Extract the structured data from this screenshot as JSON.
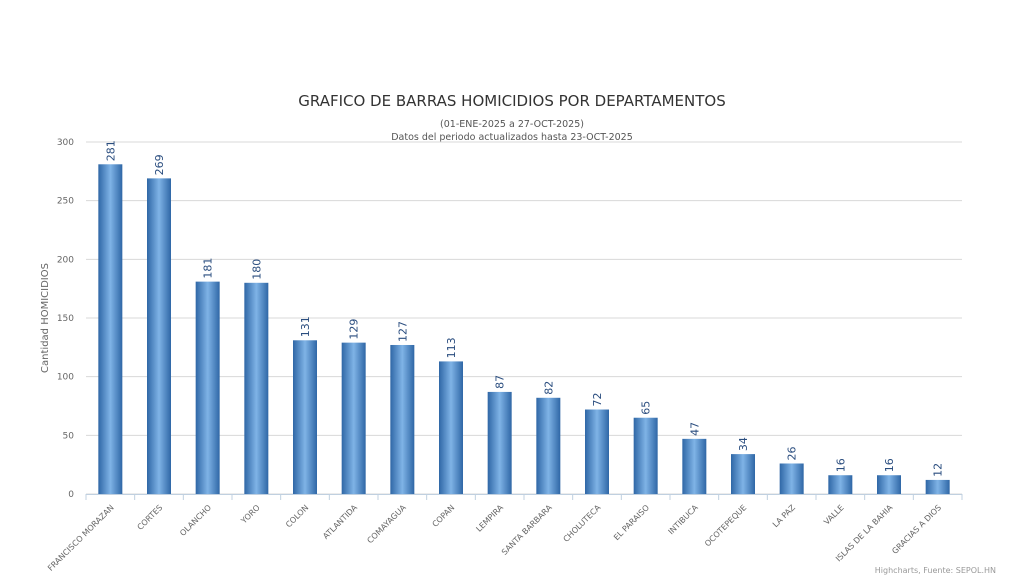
{
  "chart_data": {
    "type": "bar",
    "title": "GRAFICO DE BARRAS HOMICIDIOS POR DEPARTAMENTOS",
    "subtitle_lines": [
      "(01-ENE-2025 a 27-OCT-2025)",
      "Datos del periodo actualizados hasta 23-OCT-2025"
    ],
    "ylabel": "Cantidad HOMICIDIOS",
    "xlabel": "",
    "ylim": [
      0,
      300
    ],
    "yticks": [
      0,
      50,
      100,
      150,
      200,
      250,
      300
    ],
    "grid": true,
    "categories": [
      "FRANCISCO MORAZAN",
      "CORTES",
      "OLANCHO",
      "YORO",
      "COLON",
      "ATLANTIDA",
      "COMAYAGUA",
      "COPAN",
      "LEMPIRA",
      "SANTA BARBARA",
      "CHOLUTECA",
      "EL PARAISO",
      "INTIBUCA",
      "OCOTEPEQUE",
      "LA PAZ",
      "VALLE",
      "ISLAS DE LA BAHIA",
      "GRACIAS A DIOS"
    ],
    "values": [
      281,
      269,
      181,
      180,
      131,
      129,
      127,
      113,
      87,
      82,
      72,
      65,
      47,
      34,
      26,
      16,
      16,
      12
    ],
    "data_labels": true,
    "colors": {
      "bar_dark": "#2f67a6",
      "bar_light": "#7fb3e6",
      "label": "#2a4d7f",
      "grid": "#d8d8d8"
    }
  },
  "credits": "Highcharts, Fuente: SEPOL.HN"
}
